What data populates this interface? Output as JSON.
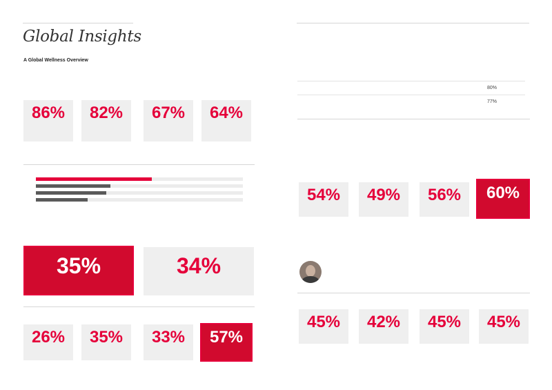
{
  "left": {
    "title": "Global Insights",
    "intro_heading": "A Global Wellness Overview",
    "intro_text": "",
    "top_stats": [
      {
        "label": "",
        "value": "86%",
        "sub": ""
      },
      {
        "label": "",
        "value": "82%",
        "sub": ""
      },
      {
        "label": "",
        "value": "67%",
        "sub": ""
      },
      {
        "label": "",
        "value": "64%",
        "sub": ""
      }
    ],
    "top_note": "",
    "bars_heading": "",
    "bars": [
      {
        "label": "",
        "fill": 0.56,
        "value": "",
        "highlight": true
      },
      {
        "label": "",
        "fill": 0.36,
        "value": "",
        "highlight": false
      },
      {
        "label": "",
        "fill": 0.34,
        "value": "",
        "highlight": false
      },
      {
        "label": "",
        "fill": 0.25,
        "value": "",
        "highlight": false
      }
    ],
    "bars_note": "",
    "compare_heading": "",
    "compare_stats": [
      {
        "label": "",
        "value": "35%",
        "highlight": true
      },
      {
        "label": "",
        "value": "34%",
        "highlight": false
      }
    ],
    "gen_heading": "",
    "gen_stats": [
      {
        "label": "",
        "value": "26%",
        "highlight": false
      },
      {
        "label": "",
        "value": "35%",
        "highlight": false
      },
      {
        "label": "",
        "value": "33%",
        "highlight": false
      },
      {
        "label": "",
        "value": "57%",
        "highlight": true
      }
    ]
  },
  "right": {
    "section_heading": "",
    "table_heading": "",
    "table_header": [
      "",
      "",
      ""
    ],
    "table_rows": [
      [
        "",
        "",
        "80%"
      ],
      [
        "",
        "",
        "77%"
      ]
    ],
    "body_heading": "",
    "body_text": "",
    "row1_heading": "",
    "row1_stats": [
      {
        "label": "",
        "value": "54%",
        "highlight": false
      },
      {
        "label": "",
        "value": "49%",
        "highlight": false
      },
      {
        "label": "",
        "value": "56%",
        "highlight": false
      },
      {
        "label": "",
        "value": "60%",
        "highlight": true
      }
    ],
    "quote": "",
    "attribution_name": "",
    "attribution_role": "",
    "row2_heading": "",
    "row2_stats": [
      {
        "label": "",
        "value": "45%",
        "highlight": false
      },
      {
        "label": "",
        "value": "42%",
        "highlight": false
      },
      {
        "label": "",
        "value": "45%",
        "highlight": false
      },
      {
        "label": "",
        "value": "45%",
        "highlight": false
      }
    ],
    "footnote": ""
  },
  "colors": {
    "accent": "#e5003a",
    "highlight_box": "#d10a2e",
    "card": "#efefef",
    "bar": "#5a5a5a"
  }
}
